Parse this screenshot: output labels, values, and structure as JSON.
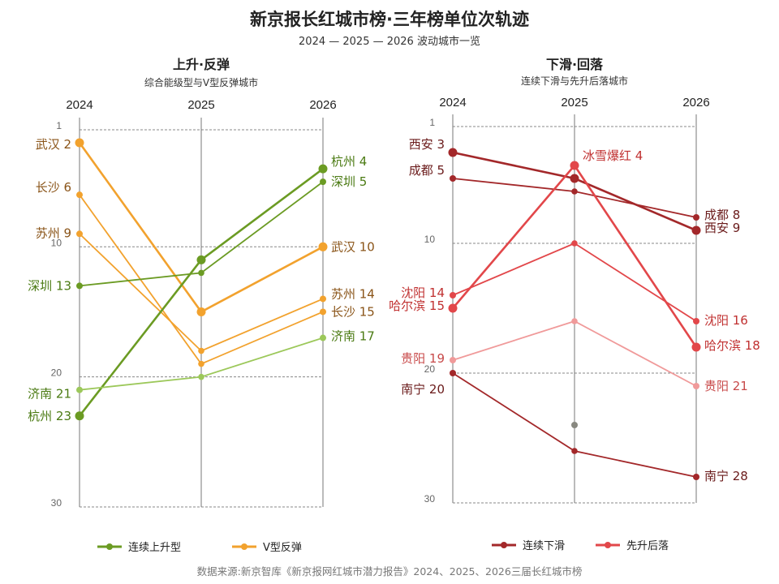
{
  "title": "新京报长红城市榜·三年榜单位次轨迹",
  "subtitle": "2024 — 2025 — 2026 波动城市一览",
  "source": "数据来源:新京智库《新京报网红城市潜力报告》2024、2025、2026三届长红城市榜",
  "chart_data": [
    {
      "type": "line",
      "title": "上升·反弹",
      "subtitle": "综合能级型与V型反弹城市",
      "categories": [
        "2024",
        "2025",
        "2026"
      ],
      "ylim": [
        30,
        1
      ],
      "y_inverted": true,
      "yticks": [
        1,
        10,
        20,
        30
      ],
      "grid": "horizontal dashed at ticks",
      "legend": [
        {
          "name": "连续上升型",
          "color": "#6b9b23"
        },
        {
          "name": "V型反弹",
          "color": "#f2a22e"
        }
      ],
      "series": [
        {
          "name": "武汉",
          "group": "V型反弹",
          "values": [
            2,
            15,
            10
          ],
          "color": "#f2a22e",
          "label_color": "#8a5418",
          "emphasis": true
        },
        {
          "name": "长沙",
          "group": "V型反弹",
          "values": [
            6,
            19,
            15
          ],
          "color": "#f2a22e",
          "label_color": "#8a5418",
          "emphasis": false
        },
        {
          "name": "苏州",
          "group": "V型反弹",
          "values": [
            9,
            18,
            14
          ],
          "color": "#f2a22e",
          "label_color": "#8a5418",
          "emphasis": false
        },
        {
          "name": "深圳",
          "group": "连续上升型",
          "values": [
            13,
            12,
            5
          ],
          "color": "#6b9b23",
          "label_color": "#4a7a12",
          "emphasis": false
        },
        {
          "name": "杭州",
          "group": "连续上升型",
          "values": [
            23,
            11,
            4
          ],
          "color": "#6b9b23",
          "label_color": "#4a7a12",
          "emphasis": true
        },
        {
          "name": "济南",
          "group": "连续上升型",
          "values": [
            21,
            20,
            17
          ],
          "color": "#9cc85a",
          "label_color": "#4a7a12",
          "emphasis": false
        }
      ]
    },
    {
      "type": "line",
      "title": "下滑·回落",
      "subtitle": "连续下滑与先升后落城市",
      "categories": [
        "2024",
        "2025",
        "2026"
      ],
      "ylim": [
        30,
        1
      ],
      "y_inverted": true,
      "yticks": [
        1,
        10,
        20,
        30
      ],
      "grid": "horizontal dashed at ticks",
      "legend": [
        {
          "name": "连续下滑",
          "color": "#a3282a"
        },
        {
          "name": "先升后落",
          "color": "#e2474a"
        }
      ],
      "annotation": "冰雪爆红 4",
      "extra_points": [
        {
          "x": "2025",
          "y": 24,
          "color": "#888880"
        }
      ],
      "series": [
        {
          "name": "西安",
          "group": "连续下滑",
          "values": [
            3,
            5,
            9
          ],
          "color": "#a3282a",
          "label_color": "#6a1a1a",
          "emphasis": true
        },
        {
          "name": "成都",
          "group": "连续下滑",
          "values": [
            5,
            6,
            8
          ],
          "color": "#a3282a",
          "label_color": "#6a1a1a",
          "emphasis": false
        },
        {
          "name": "哈尔滨",
          "group": "先升后落",
          "values": [
            15,
            4,
            18
          ],
          "color": "#e2474a",
          "label_color": "#c03030",
          "emphasis": true
        },
        {
          "name": "沈阳",
          "group": "先升后落",
          "values": [
            14,
            10,
            16
          ],
          "color": "#e2474a",
          "label_color": "#c03030",
          "emphasis": false
        },
        {
          "name": "贵阳",
          "group": "先升后落",
          "values": [
            19,
            16,
            21
          ],
          "color": "#f09a9a",
          "label_color": "#c84a4a",
          "emphasis": false
        },
        {
          "name": "南宁",
          "group": "连续下滑",
          "values": [
            20,
            26,
            28
          ],
          "color": "#a3282a",
          "label_color": "#6a1a1a",
          "emphasis": false
        }
      ]
    }
  ]
}
